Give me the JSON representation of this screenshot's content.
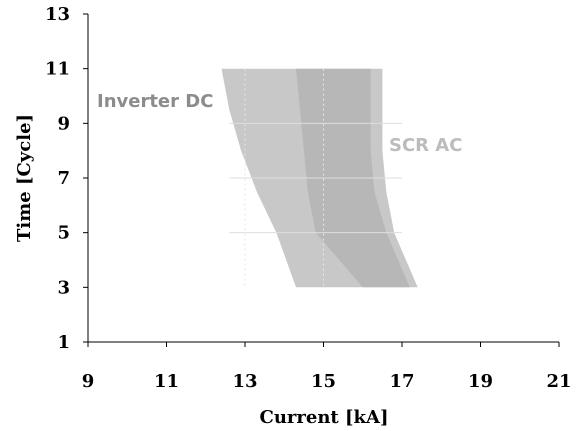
{
  "chart_data": {
    "type": "area",
    "xlabel": "Current [kA]",
    "ylabel": "Time [Cycle]",
    "xlim": [
      9,
      21
    ],
    "ylim": [
      1,
      13
    ],
    "xticks": [
      "9",
      "11",
      "13",
      "15",
      "17",
      "19",
      "21"
    ],
    "yticks": [
      "1",
      "3",
      "5",
      "7",
      "9",
      "11",
      "13"
    ],
    "grid": "minor dotted vertical lines at x=13,15 and horizontal lines at y=5,7,9 inside the shaded regions",
    "series": [
      {
        "name": "Inverter DC",
        "color": "#c8c8c8",
        "label_color": "#8c8c8c",
        "left_boundary": [
          [
            12.4,
            11
          ],
          [
            12.6,
            9.5
          ],
          [
            12.9,
            8
          ],
          [
            13.3,
            6.5
          ],
          [
            13.8,
            5
          ],
          [
            14.3,
            3
          ]
        ],
        "right_boundary": [
          [
            16.5,
            11
          ],
          [
            16.5,
            9.5
          ],
          [
            16.5,
            8
          ],
          [
            16.6,
            6.5
          ],
          [
            16.8,
            5
          ],
          [
            17.4,
            3
          ]
        ]
      },
      {
        "name": "SCR AC",
        "color": "#b4b4b4",
        "label_color": "#bcbcbc",
        "left_boundary": [
          [
            14.3,
            11
          ],
          [
            14.4,
            9.5
          ],
          [
            14.5,
            8
          ],
          [
            14.6,
            6.5
          ],
          [
            14.8,
            5
          ],
          [
            16.0,
            3
          ]
        ],
        "right_boundary": [
          [
            16.2,
            11
          ],
          [
            16.2,
            9.5
          ],
          [
            16.2,
            8
          ],
          [
            16.3,
            6.5
          ],
          [
            16.6,
            5
          ],
          [
            17.2,
            3
          ]
        ]
      }
    ]
  }
}
